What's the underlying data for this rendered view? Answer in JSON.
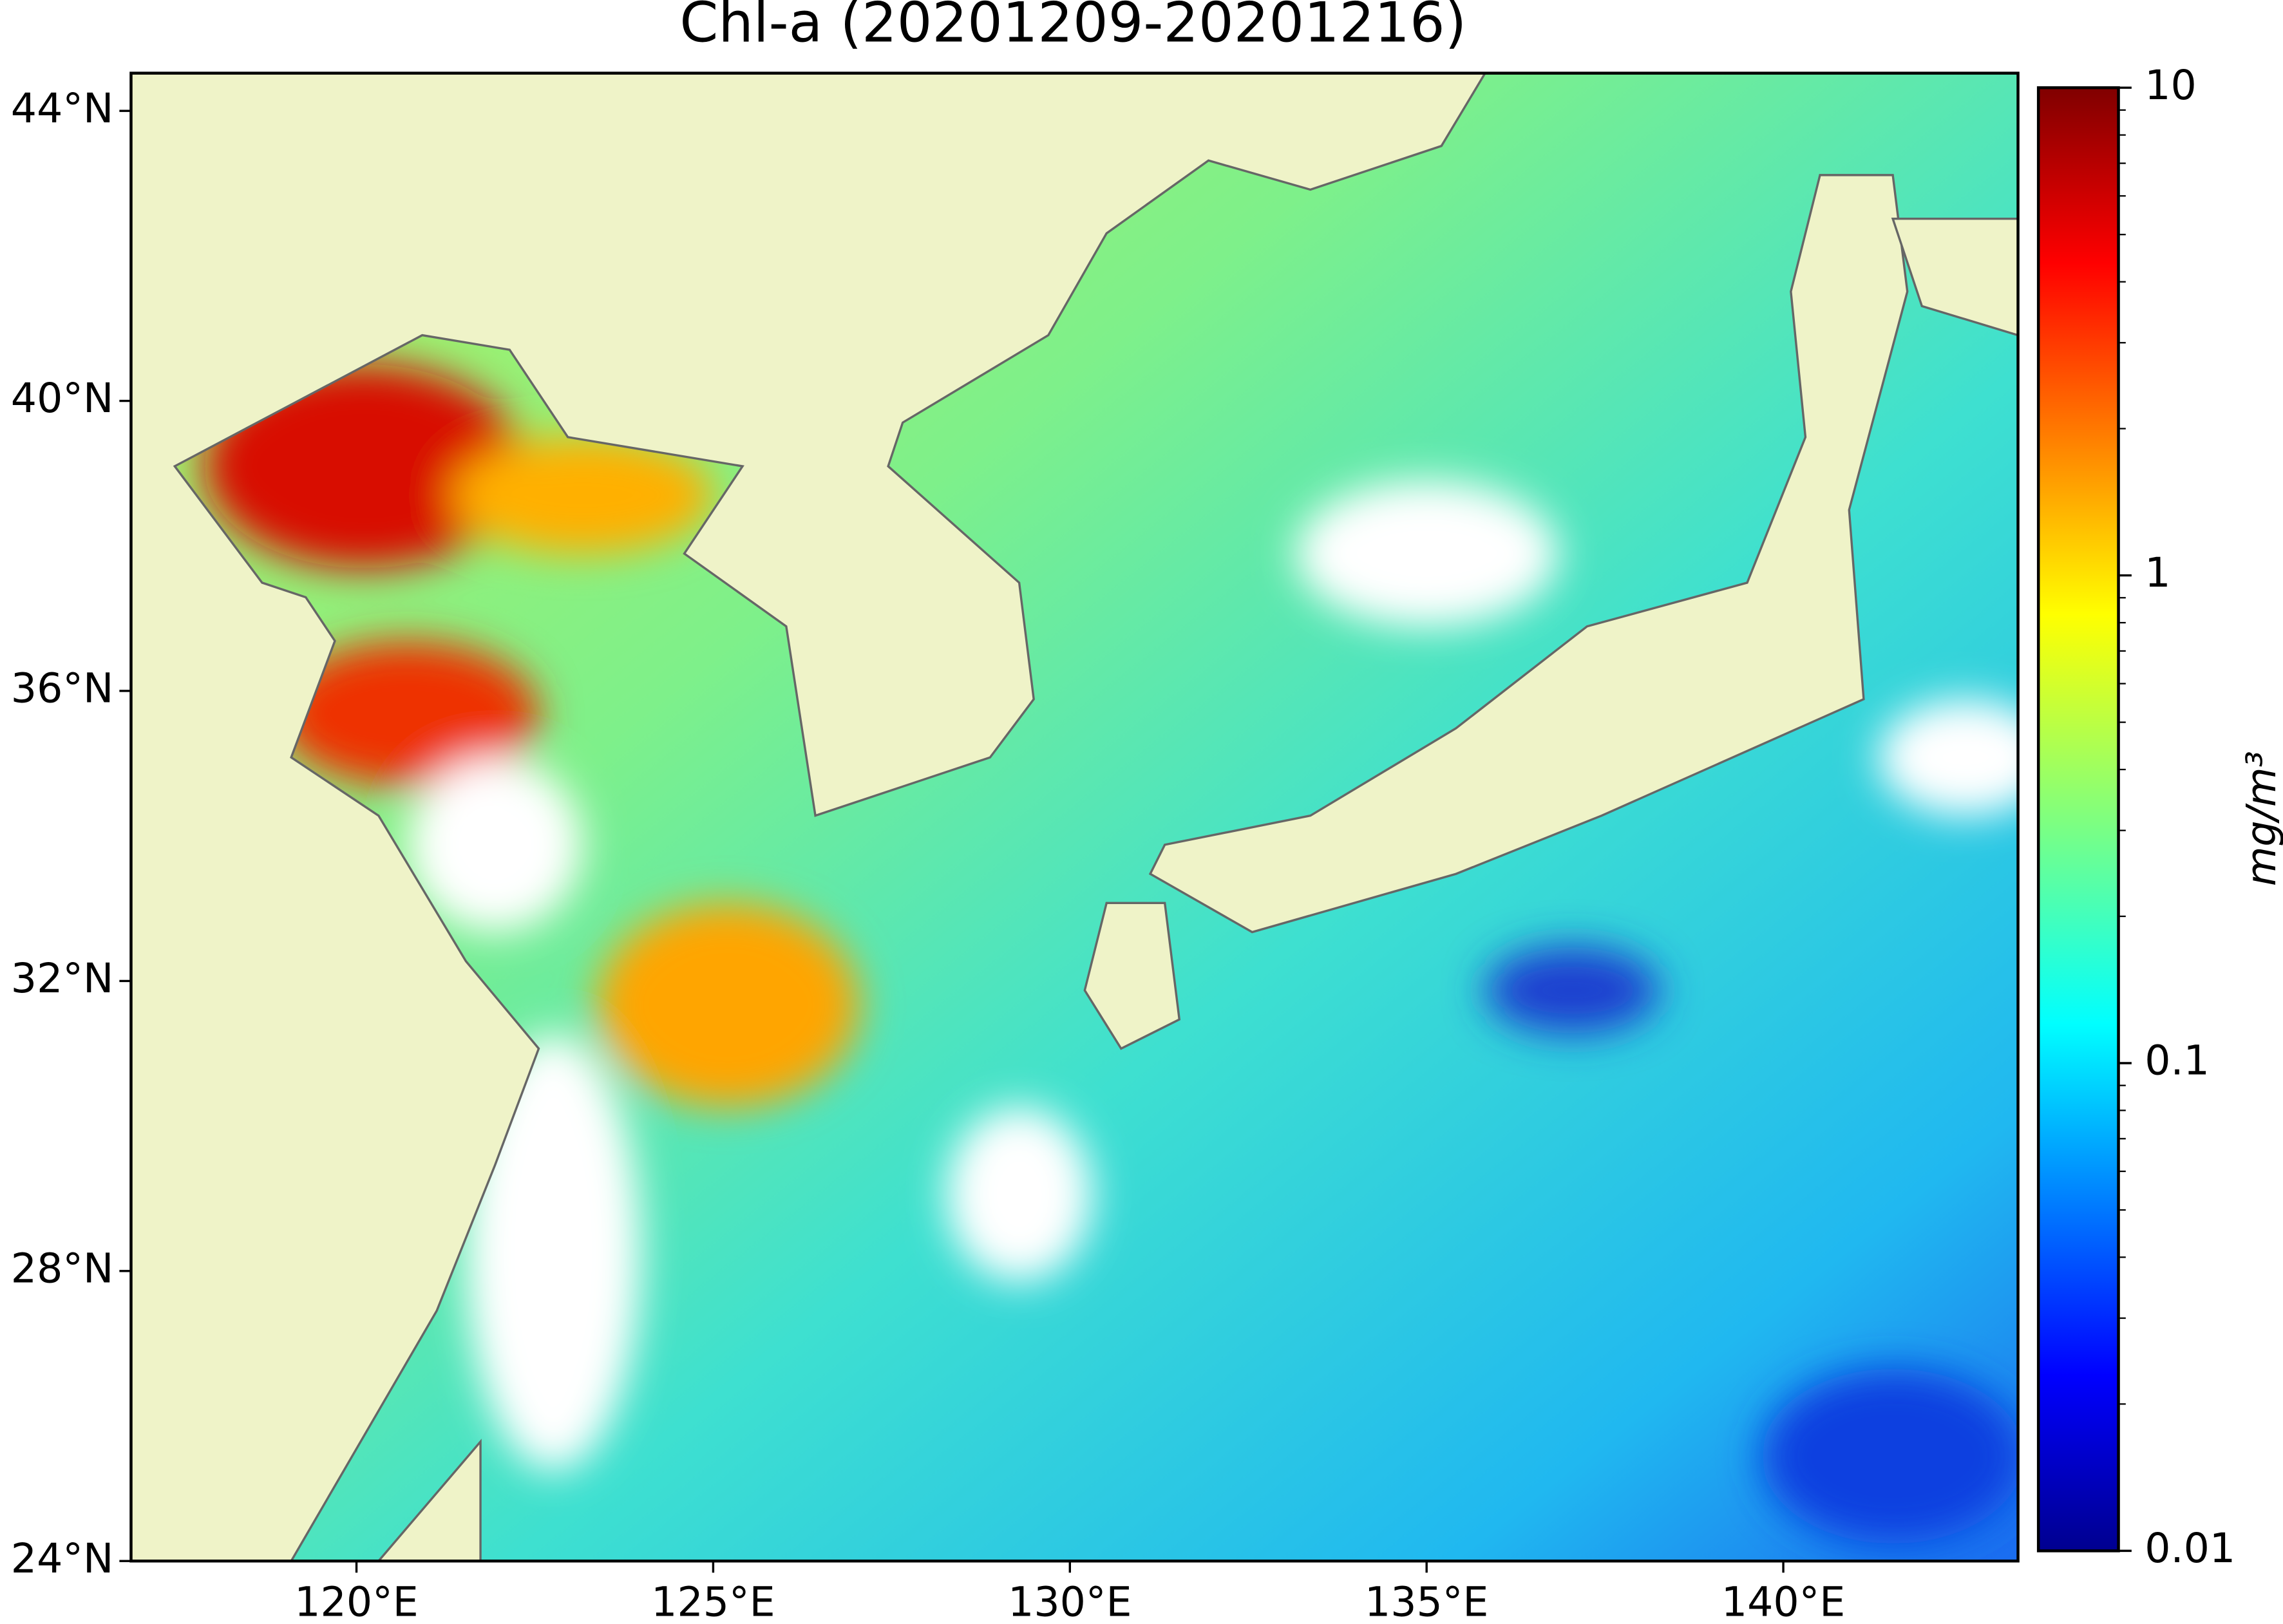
{
  "map": {
    "title": "Chl-a (20201209-20201216)",
    "xlim": [
      116.84,
      143.29
    ],
    "ylim": [
      24,
      44.52
    ],
    "xticks": [
      {
        "value": 120,
        "label": "120°E"
      },
      {
        "value": 125,
        "label": "125°E"
      },
      {
        "value": 130,
        "label": "130°E"
      },
      {
        "value": 135,
        "label": "135°E"
      },
      {
        "value": 140,
        "label": "140°E"
      }
    ],
    "yticks": [
      {
        "value": 24,
        "label": "24°N"
      },
      {
        "value": 28,
        "label": "28°N"
      },
      {
        "value": 32,
        "label": "32°N"
      },
      {
        "value": 36,
        "label": "36°N"
      },
      {
        "value": 40,
        "label": "40°N"
      },
      {
        "value": 44,
        "label": "44°N"
      }
    ],
    "colorbar": {
      "label": "mg/m³",
      "scale": "log",
      "lim": [
        0.01,
        10
      ],
      "ticks": [
        0.01,
        0.1,
        1,
        10
      ]
    }
  }
}
